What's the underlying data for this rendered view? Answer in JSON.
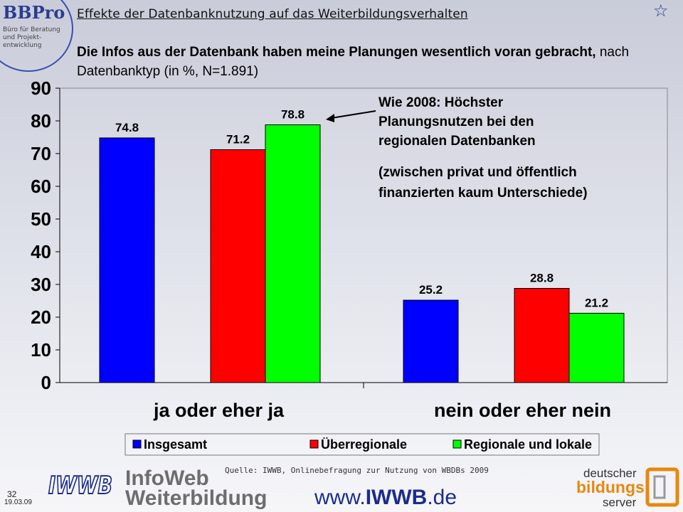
{
  "header": {
    "logo_text": "BBPro",
    "logo_sub_lines": [
      "Büro für Beratung",
      "und Projekt-",
      "entwicklung"
    ],
    "slide_title": "Effekte der Datenbanknutzung auf das Weiterbildungsverhalten",
    "star_icon": "star-outline-icon"
  },
  "subtitle": {
    "bold": "Die Infos aus der Datenbank haben meine Planungen wesentlich voran gebracht,",
    "normal": " nach Datenbanktyp (in %, N=1.891)"
  },
  "chart_data": {
    "type": "bar",
    "categories": [
      "ja oder eher ja",
      "nein oder eher nein"
    ],
    "series": [
      {
        "name": "Insgesamt",
        "values": [
          74.8,
          25.2
        ],
        "color": "#0000ff"
      },
      {
        "name": "Überregionale",
        "values": [
          71.2,
          28.8
        ],
        "color": "#ff0000"
      },
      {
        "name": "Regionale und lokale",
        "values": [
          78.8,
          21.2
        ],
        "color": "#00ff00"
      }
    ],
    "data_labels": [
      [
        "74.8",
        "25.2"
      ],
      [
        "71.2",
        "28.8"
      ],
      [
        "78.8",
        "21.2"
      ]
    ],
    "ylim": [
      0,
      90
    ],
    "yticks": [
      "0",
      "10",
      "20",
      "30",
      "40",
      "50",
      "60",
      "70",
      "80",
      "90"
    ],
    "grid": false,
    "legend_position": "bottom",
    "annotation": {
      "lines": [
        "Wie 2008: Höchster",
        "Planungsnutzen bei den",
        "regionalen Datenbanken"
      ],
      "sub_lines": [
        "(zwischen privat und öffentlich",
        "finanzierten kaum Unterschiede)"
      ]
    }
  },
  "footer": {
    "source": "Quelle: IWWB, Onlinebefragung zur Nutzung von WBDBs 2009",
    "page_number": "32",
    "date": "19.03.09",
    "iwwb_logo_text": "IWWB",
    "brand_line1": "InfoWeb",
    "brand_line2": "Weiterbildung",
    "url_prefix": "www.",
    "url_bold": "IWWB",
    "url_suffix": ".de",
    "dbs_line1": "deutscher",
    "dbs_line2": "bildungs",
    "dbs_line3": "server"
  }
}
